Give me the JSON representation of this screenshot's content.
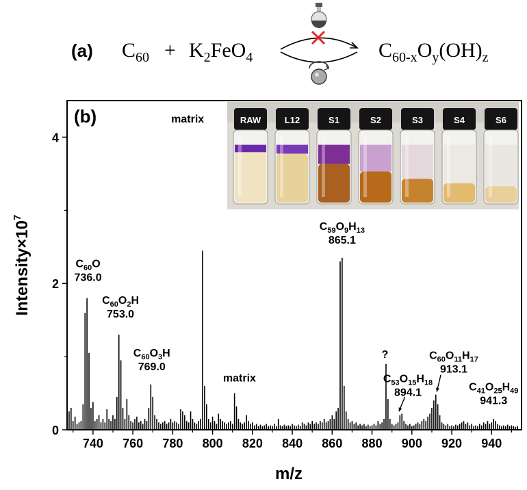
{
  "reaction": {
    "panel_label": "(a)",
    "reactant1_base": "C",
    "reactant1_sub": "60",
    "plus": "+",
    "reactant2_k": "K",
    "reactant2_k_sub": "2",
    "reactant2_rest": "FeO",
    "reactant2_o_sub": "4",
    "product_base": "C",
    "product_sub1": "60-x",
    "product_o": "O",
    "product_sub2": "y",
    "product_oh": "(OH)",
    "product_sub3": "z"
  },
  "photo": {
    "samples": [
      "RAW",
      "L12",
      "S1",
      "S2",
      "S3",
      "S4",
      "S6"
    ],
    "colors": {
      "purple": "#6a2aa8",
      "orange": "#b86a1a",
      "pale": "#efe3c2",
      "cap": "#151515"
    }
  },
  "chart_data": {
    "type": "bar",
    "panel_label": "(b)",
    "xlabel": "m/z",
    "ylabel": "Intensity×10",
    "ylabel_sup": "7",
    "xlim": [
      727,
      955
    ],
    "ylim": [
      0,
      4.5
    ],
    "xticks": [
      "740",
      "760",
      "780",
      "800",
      "820",
      "840",
      "860",
      "880",
      "900",
      "920",
      "940"
    ],
    "yticks": [
      "0",
      "2",
      "4"
    ],
    "peaks": [
      [
        728,
        0.25
      ],
      [
        729,
        0.3
      ],
      [
        730,
        0.12
      ],
      [
        731,
        0.18
      ],
      [
        732,
        0.08
      ],
      [
        733,
        0.1
      ],
      [
        734,
        0.12
      ],
      [
        735,
        0.35
      ],
      [
        736,
        1.6
      ],
      [
        737,
        1.8
      ],
      [
        738,
        1.05
      ],
      [
        739,
        0.3
      ],
      [
        740,
        0.38
      ],
      [
        741,
        0.12
      ],
      [
        742,
        0.15
      ],
      [
        743,
        0.2
      ],
      [
        744,
        0.1
      ],
      [
        745,
        0.15
      ],
      [
        746,
        0.1
      ],
      [
        747,
        0.28
      ],
      [
        748,
        0.15
      ],
      [
        749,
        0.12
      ],
      [
        750,
        0.2
      ],
      [
        751,
        0.15
      ],
      [
        752,
        0.45
      ],
      [
        753,
        1.3
      ],
      [
        754,
        0.95
      ],
      [
        755,
        0.3
      ],
      [
        756,
        0.15
      ],
      [
        757,
        0.42
      ],
      [
        758,
        0.2
      ],
      [
        759,
        0.12
      ],
      [
        760,
        0.1
      ],
      [
        761,
        0.15
      ],
      [
        762,
        0.18
      ],
      [
        763,
        0.1
      ],
      [
        764,
        0.12
      ],
      [
        765,
        0.08
      ],
      [
        766,
        0.15
      ],
      [
        767,
        0.12
      ],
      [
        768,
        0.3
      ],
      [
        769,
        0.62
      ],
      [
        770,
        0.45
      ],
      [
        771,
        0.2
      ],
      [
        772,
        0.15
      ],
      [
        773,
        0.1
      ],
      [
        774,
        0.08
      ],
      [
        775,
        0.1
      ],
      [
        776,
        0.12
      ],
      [
        777,
        0.08
      ],
      [
        778,
        0.1
      ],
      [
        779,
        0.15
      ],
      [
        780,
        0.1
      ],
      [
        781,
        0.12
      ],
      [
        782,
        0.1
      ],
      [
        783,
        0.08
      ],
      [
        784,
        0.28
      ],
      [
        785,
        0.25
      ],
      [
        786,
        0.2
      ],
      [
        787,
        0.12
      ],
      [
        788,
        0.1
      ],
      [
        789,
        0.25
      ],
      [
        790,
        0.15
      ],
      [
        791,
        0.1
      ],
      [
        792,
        0.08
      ],
      [
        793,
        0.12
      ],
      [
        794,
        0.15
      ],
      [
        795,
        2.45
      ],
      [
        796,
        0.6
      ],
      [
        797,
        0.35
      ],
      [
        798,
        0.15
      ],
      [
        799,
        0.1
      ],
      [
        800,
        0.18
      ],
      [
        801,
        0.12
      ],
      [
        802,
        0.08
      ],
      [
        803,
        0.22
      ],
      [
        804,
        0.15
      ],
      [
        805,
        0.12
      ],
      [
        806,
        0.1
      ],
      [
        807,
        0.08
      ],
      [
        808,
        0.1
      ],
      [
        809,
        0.12
      ],
      [
        810,
        0.08
      ],
      [
        811,
        0.5
      ],
      [
        812,
        0.32
      ],
      [
        813,
        0.15
      ],
      [
        814,
        0.1
      ],
      [
        815,
        0.08
      ],
      [
        816,
        0.1
      ],
      [
        817,
        0.2
      ],
      [
        818,
        0.12
      ],
      [
        819,
        0.08
      ],
      [
        820,
        0.1
      ],
      [
        821,
        0.06
      ],
      [
        822,
        0.08
      ],
      [
        823,
        0.05
      ],
      [
        824,
        0.07
      ],
      [
        825,
        0.05
      ],
      [
        826,
        0.06
      ],
      [
        827,
        0.08
      ],
      [
        828,
        0.05
      ],
      [
        829,
        0.06
      ],
      [
        830,
        0.05
      ],
      [
        831,
        0.08
      ],
      [
        832,
        0.05
      ],
      [
        833,
        0.15
      ],
      [
        834,
        0.06
      ],
      [
        835,
        0.05
      ],
      [
        836,
        0.07
      ],
      [
        837,
        0.05
      ],
      [
        838,
        0.06
      ],
      [
        839,
        0.05
      ],
      [
        840,
        0.08
      ],
      [
        841,
        0.06
      ],
      [
        842,
        0.05
      ],
      [
        843,
        0.07
      ],
      [
        844,
        0.05
      ],
      [
        845,
        0.1
      ],
      [
        846,
        0.08
      ],
      [
        847,
        0.06
      ],
      [
        848,
        0.1
      ],
      [
        849,
        0.08
      ],
      [
        850,
        0.12
      ],
      [
        851,
        0.08
      ],
      [
        852,
        0.1
      ],
      [
        853,
        0.08
      ],
      [
        854,
        0.12
      ],
      [
        855,
        0.1
      ],
      [
        856,
        0.15
      ],
      [
        857,
        0.1
      ],
      [
        858,
        0.12
      ],
      [
        859,
        0.15
      ],
      [
        860,
        0.2
      ],
      [
        861,
        0.15
      ],
      [
        862,
        0.25
      ],
      [
        863,
        0.3
      ],
      [
        864,
        2.3
      ],
      [
        865,
        2.35
      ],
      [
        866,
        0.6
      ],
      [
        867,
        0.25
      ],
      [
        868,
        0.15
      ],
      [
        869,
        0.1
      ],
      [
        870,
        0.12
      ],
      [
        871,
        0.08
      ],
      [
        872,
        0.1
      ],
      [
        873,
        0.06
      ],
      [
        874,
        0.08
      ],
      [
        875,
        0.06
      ],
      [
        876,
        0.08
      ],
      [
        877,
        0.05
      ],
      [
        878,
        0.07
      ],
      [
        879,
        0.05
      ],
      [
        880,
        0.06
      ],
      [
        881,
        0.08
      ],
      [
        882,
        0.06
      ],
      [
        883,
        0.12
      ],
      [
        884,
        0.08
      ],
      [
        885,
        0.1
      ],
      [
        886,
        0.15
      ],
      [
        887,
        0.9
      ],
      [
        888,
        0.42
      ],
      [
        889,
        0.15
      ],
      [
        890,
        0.08
      ],
      [
        891,
        0.06
      ],
      [
        892,
        0.08
      ],
      [
        893,
        0.1
      ],
      [
        894,
        0.2
      ],
      [
        895,
        0.22
      ],
      [
        896,
        0.12
      ],
      [
        897,
        0.08
      ],
      [
        898,
        0.06
      ],
      [
        899,
        0.08
      ],
      [
        900,
        0.05
      ],
      [
        901,
        0.06
      ],
      [
        902,
        0.08
      ],
      [
        903,
        0.1
      ],
      [
        904,
        0.08
      ],
      [
        905,
        0.12
      ],
      [
        906,
        0.15
      ],
      [
        907,
        0.12
      ],
      [
        908,
        0.18
      ],
      [
        909,
        0.22
      ],
      [
        910,
        0.3
      ],
      [
        911,
        0.4
      ],
      [
        912,
        0.48
      ],
      [
        913,
        0.35
      ],
      [
        914,
        0.2
      ],
      [
        915,
        0.1
      ],
      [
        916,
        0.08
      ],
      [
        917,
        0.06
      ],
      [
        918,
        0.08
      ],
      [
        919,
        0.05
      ],
      [
        920,
        0.06
      ],
      [
        921,
        0.05
      ],
      [
        922,
        0.07
      ],
      [
        923,
        0.06
      ],
      [
        924,
        0.08
      ],
      [
        925,
        0.1
      ],
      [
        926,
        0.12
      ],
      [
        927,
        0.08
      ],
      [
        928,
        0.1
      ],
      [
        929,
        0.06
      ],
      [
        930,
        0.08
      ],
      [
        931,
        0.05
      ],
      [
        932,
        0.06
      ],
      [
        933,
        0.05
      ],
      [
        934,
        0.08
      ],
      [
        935,
        0.06
      ],
      [
        936,
        0.1
      ],
      [
        937,
        0.08
      ],
      [
        938,
        0.12
      ],
      [
        939,
        0.08
      ],
      [
        940,
        0.1
      ],
      [
        941,
        0.15
      ],
      [
        942,
        0.12
      ],
      [
        943,
        0.08
      ],
      [
        944,
        0.06
      ],
      [
        945,
        0.05
      ],
      [
        946,
        0.06
      ],
      [
        947,
        0.05
      ],
      [
        948,
        0.07
      ],
      [
        949,
        0.05
      ],
      [
        950,
        0.06
      ],
      [
        951,
        0.05
      ],
      [
        952,
        0.04
      ],
      [
        953,
        0.05
      ]
    ],
    "annotations": [
      {
        "formula": [
          [
            "C",
            ""
          ],
          [
            "60",
            "sub"
          ],
          [
            "O",
            ""
          ]
        ],
        "mz": "736.0",
        "x": 737.5,
        "y": 2.22,
        "anchor": "middle"
      },
      {
        "formula": [
          [
            "C",
            ""
          ],
          [
            "60",
            "sub"
          ],
          [
            "O",
            ""
          ],
          [
            "2",
            "sub"
          ],
          [
            "H",
            ""
          ]
        ],
        "mz": "753.0",
        "x": 753.8,
        "y": 1.72,
        "anchor": "middle"
      },
      {
        "formula": [
          [
            "C",
            ""
          ],
          [
            "60",
            "sub"
          ],
          [
            "O",
            ""
          ],
          [
            "3",
            "sub"
          ],
          [
            "H",
            ""
          ]
        ],
        "mz": "769.0",
        "x": 769.5,
        "y": 1.0,
        "anchor": "middle"
      },
      {
        "formula": [
          [
            "matrix",
            ""
          ]
        ],
        "mz": "",
        "x": 787.5,
        "y": 4.2,
        "anchor": "middle"
      },
      {
        "formula": [
          [
            "matrix",
            ""
          ]
        ],
        "mz": "",
        "x": 813.5,
        "y": 0.66,
        "anchor": "middle"
      },
      {
        "formula": [
          [
            "C",
            ""
          ],
          [
            "59",
            "sub"
          ],
          [
            "O",
            ""
          ],
          [
            "9",
            "sub"
          ],
          [
            "H",
            ""
          ],
          [
            "13",
            "sub"
          ]
        ],
        "mz": "865.1",
        "x": 865,
        "y": 2.73,
        "anchor": "middle"
      },
      {
        "formula": [
          [
            "?",
            ""
          ]
        ],
        "mz": "",
        "x": 886.5,
        "y": 0.98,
        "anchor": "middle"
      },
      {
        "formula": [
          [
            "C",
            ""
          ],
          [
            "53",
            "sub"
          ],
          [
            "O",
            ""
          ],
          [
            "15",
            "sub"
          ],
          [
            "H",
            ""
          ],
          [
            "18",
            "sub"
          ]
        ],
        "mz": "894.1",
        "x": 898,
        "y": 0.65,
        "anchor": "middle"
      },
      {
        "formula": [
          [
            "C",
            ""
          ],
          [
            "60",
            "sub"
          ],
          [
            "O",
            ""
          ],
          [
            "11",
            "sub"
          ],
          [
            "H",
            ""
          ],
          [
            "17",
            "sub"
          ]
        ],
        "mz": "913.1",
        "x": 921,
        "y": 0.97,
        "anchor": "middle"
      },
      {
        "formula": [
          [
            "C",
            ""
          ],
          [
            "41",
            "sub"
          ],
          [
            "O",
            ""
          ],
          [
            "25",
            "sub"
          ],
          [
            "H",
            ""
          ],
          [
            "49",
            "sub"
          ]
        ],
        "mz": "941.3",
        "x": 941,
        "y": 0.54,
        "anchor": "middle"
      }
    ]
  }
}
